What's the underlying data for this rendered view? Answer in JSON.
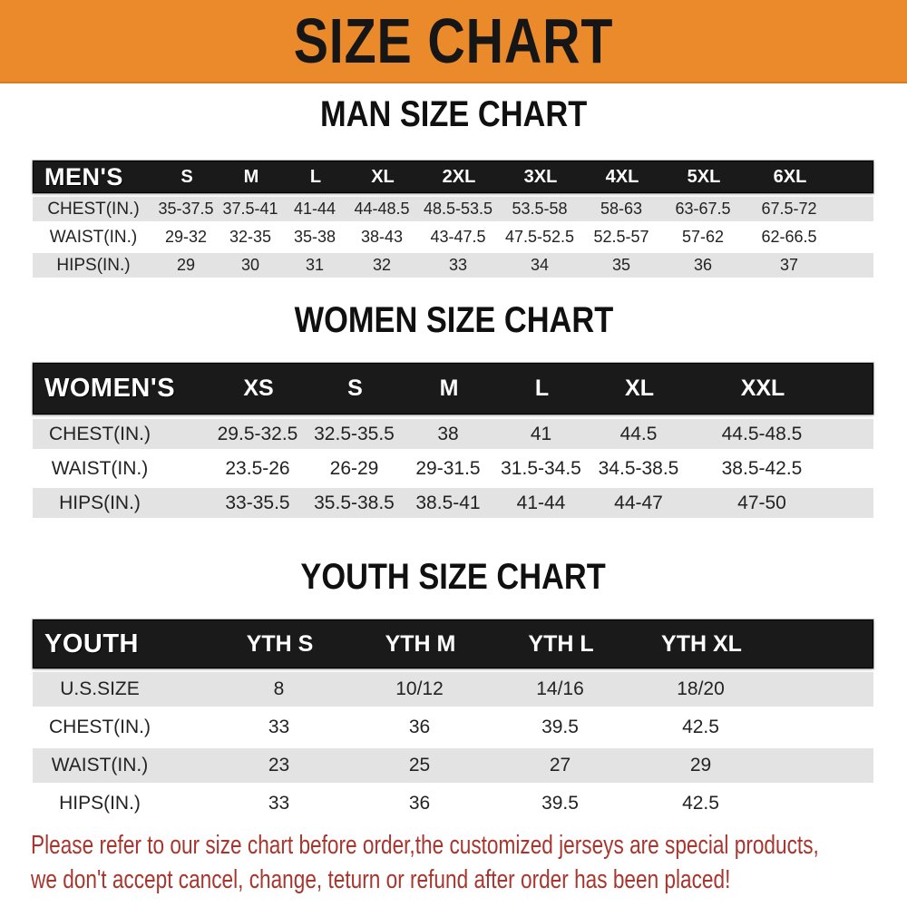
{
  "banner": {
    "title": "SIZE CHART",
    "background_color": "#EA8A2B",
    "text_color": "#161616"
  },
  "men": {
    "heading": "MAN SIZE CHART",
    "header_label": "MEN'S",
    "columns": [
      "S",
      "M",
      "L",
      "XL",
      "2XL",
      "3XL",
      "4XL",
      "5XL",
      "6XL"
    ],
    "rows": [
      {
        "label": "CHEST(IN.)",
        "values": [
          "35-37.5",
          "37.5-41",
          "41-44",
          "44-48.5",
          "48.5-53.5",
          "53.5-58",
          "58-63",
          "63-67.5",
          "67.5-72"
        ]
      },
      {
        "label": "WAIST(IN.)",
        "values": [
          "29-32",
          "32-35",
          "35-38",
          "38-43",
          "43-47.5",
          "47.5-52.5",
          "52.5-57",
          "57-62",
          "62-66.5"
        ]
      },
      {
        "label": "HIPS(IN.)",
        "values": [
          "29",
          "30",
          "31",
          "32",
          "33",
          "34",
          "35",
          "36",
          "37"
        ]
      }
    ]
  },
  "women": {
    "heading": "WOMEN SIZE CHART",
    "header_label": "WOMEN'S",
    "columns": [
      "XS",
      "S",
      "M",
      "L",
      "XL",
      "XXL"
    ],
    "rows": [
      {
        "label": "CHEST(IN.)",
        "values": [
          "29.5-32.5",
          "32.5-35.5",
          "38",
          "41",
          "44.5",
          "44.5-48.5"
        ]
      },
      {
        "label": "WAIST(IN.)",
        "values": [
          "23.5-26",
          "26-29",
          "29-31.5",
          "31.5-34.5",
          "34.5-38.5",
          "38.5-42.5"
        ]
      },
      {
        "label": "HIPS(IN.)",
        "values": [
          "33-35.5",
          "35.5-38.5",
          "38.5-41",
          "41-44",
          "44-47",
          "47-50"
        ]
      }
    ]
  },
  "youth": {
    "heading": "YOUTH SIZE CHART",
    "header_label": "YOUTH",
    "columns": [
      "YTH S",
      "YTH M",
      "YTH L",
      "YTH XL"
    ],
    "rows": [
      {
        "label": "U.S.SIZE",
        "values": [
          "8",
          "10/12",
          "14/16",
          "18/20"
        ]
      },
      {
        "label": "CHEST(IN.)",
        "values": [
          "33",
          "36",
          "39.5",
          "42.5"
        ]
      },
      {
        "label": "WAIST(IN.)",
        "values": [
          "23",
          "25",
          "27",
          "29"
        ]
      },
      {
        "label": "HIPS(IN.)",
        "values": [
          "33",
          "36",
          "39.5",
          "42.5"
        ]
      }
    ]
  },
  "footer": {
    "line1": "Please refer to our size chart before order,the customized jerseys are special products,",
    "line2": "we don't accept cancel, change, teturn or refund after order has been placed!",
    "text_color": "#A8362E"
  }
}
